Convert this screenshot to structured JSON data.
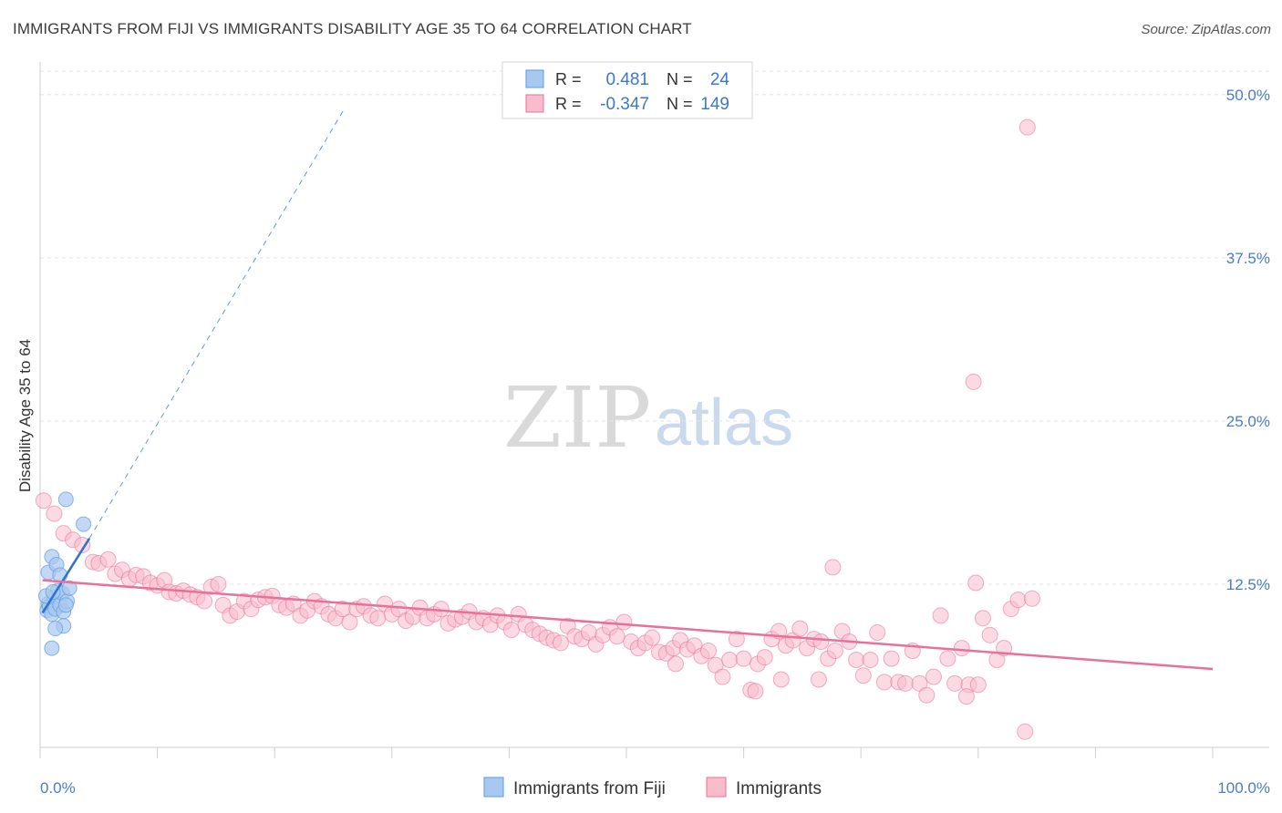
{
  "title": "IMMIGRANTS FROM FIJI VS IMMIGRANTS DISABILITY AGE 35 TO 64 CORRELATION CHART",
  "source": "Source: ZipAtlas.com",
  "watermark": {
    "zip": "ZIP",
    "atlas": "atlas"
  },
  "legend_box": {
    "rows": [
      {
        "r_label": "R =",
        "r_value": "0.481",
        "n_label": "N =",
        "n_value": "24",
        "color": "#a9c8f0"
      },
      {
        "r_label": "R =",
        "r_value": "-0.347",
        "n_label": "N =",
        "n_value": "149",
        "color": "#f8bccc"
      }
    ]
  },
  "bottom_legend": {
    "items": [
      {
        "label": "Immigrants from Fiji",
        "color": "#a9c8f0"
      },
      {
        "label": "Immigrants",
        "color": "#f8bccc"
      }
    ]
  },
  "chart_data": {
    "type": "scatter",
    "xlabel": "",
    "ylabel": "Disability Age 35 to 64",
    "xlim": [
      0,
      100
    ],
    "ylim": [
      0,
      52.5
    ],
    "x_tick_labels": [
      "0.0%",
      "100.0%"
    ],
    "y_ticks": [
      12.5,
      25.0,
      37.5,
      50.0
    ],
    "y_tick_labels": [
      "12.5%",
      "25.0%",
      "37.5%",
      "50.0%"
    ],
    "grid": true,
    "colors": {
      "fiji": "#5b9be0",
      "fiji_fill": "#a9c8f0",
      "immigrants": "#e8709a",
      "immigrants_fill": "#f8bccc"
    },
    "series": [
      {
        "name": "Immigrants from Fiji",
        "trend": {
          "x0": 0.2,
          "y0": 10.3,
          "x1": 4.2,
          "y1": 16.0,
          "dash_to_x": 26.0,
          "dash_to_y": 49.0
        },
        "points": [
          [
            0.6,
            10.5
          ],
          [
            0.7,
            11.0
          ],
          [
            0.8,
            10.8
          ],
          [
            1.0,
            10.2
          ],
          [
            1.2,
            11.5
          ],
          [
            1.3,
            10.6
          ],
          [
            1.5,
            12.0
          ],
          [
            1.7,
            10.9
          ],
          [
            1.9,
            11.8
          ],
          [
            2.0,
            10.4
          ],
          [
            2.3,
            11.2
          ],
          [
            2.5,
            12.2
          ],
          [
            0.7,
            13.4
          ],
          [
            1.0,
            14.6
          ],
          [
            1.4,
            14.0
          ],
          [
            1.7,
            13.2
          ],
          [
            2.2,
            10.9
          ],
          [
            2.0,
            9.3
          ],
          [
            1.3,
            9.1
          ],
          [
            1.0,
            7.6
          ],
          [
            3.7,
            17.1
          ],
          [
            2.2,
            19.0
          ],
          [
            0.5,
            11.6
          ],
          [
            1.1,
            11.9
          ]
        ]
      },
      {
        "name": "Immigrants",
        "trend": {
          "x0": 0.2,
          "y0": 12.8,
          "x1": 100.0,
          "y1": 6.0
        },
        "points": [
          [
            0.3,
            18.9
          ],
          [
            1.2,
            17.9
          ],
          [
            2.0,
            16.4
          ],
          [
            2.8,
            15.9
          ],
          [
            3.6,
            15.5
          ],
          [
            4.5,
            14.2
          ],
          [
            5.0,
            14.1
          ],
          [
            5.8,
            14.4
          ],
          [
            6.4,
            13.3
          ],
          [
            7.0,
            13.6
          ],
          [
            7.6,
            12.9
          ],
          [
            8.2,
            13.2
          ],
          [
            8.8,
            13.1
          ],
          [
            9.4,
            12.6
          ],
          [
            10.0,
            12.4
          ],
          [
            10.6,
            12.8
          ],
          [
            11.0,
            11.9
          ],
          [
            11.6,
            11.8
          ],
          [
            12.2,
            12.0
          ],
          [
            12.8,
            11.7
          ],
          [
            13.4,
            11.5
          ],
          [
            14.0,
            11.2
          ],
          [
            14.6,
            12.3
          ],
          [
            15.2,
            12.5
          ],
          [
            15.6,
            10.9
          ],
          [
            16.2,
            10.1
          ],
          [
            16.8,
            10.4
          ],
          [
            17.4,
            11.2
          ],
          [
            18.0,
            10.6
          ],
          [
            18.6,
            11.3
          ],
          [
            19.2,
            11.5
          ],
          [
            19.8,
            11.6
          ],
          [
            20.4,
            10.9
          ],
          [
            21.0,
            10.7
          ],
          [
            21.6,
            11.0
          ],
          [
            22.2,
            10.1
          ],
          [
            22.8,
            10.5
          ],
          [
            23.4,
            11.2
          ],
          [
            24.0,
            10.8
          ],
          [
            24.6,
            10.2
          ],
          [
            25.2,
            9.9
          ],
          [
            25.8,
            10.6
          ],
          [
            26.4,
            9.6
          ],
          [
            27.0,
            10.6
          ],
          [
            27.6,
            10.8
          ],
          [
            28.2,
            10.1
          ],
          [
            28.8,
            9.9
          ],
          [
            29.4,
            11.0
          ],
          [
            30.0,
            10.2
          ],
          [
            30.6,
            10.6
          ],
          [
            31.2,
            9.7
          ],
          [
            31.8,
            10.0
          ],
          [
            32.4,
            10.7
          ],
          [
            33.0,
            9.9
          ],
          [
            33.6,
            10.2
          ],
          [
            34.2,
            10.6
          ],
          [
            34.8,
            9.5
          ],
          [
            35.4,
            9.8
          ],
          [
            36.0,
            10.0
          ],
          [
            36.6,
            10.4
          ],
          [
            37.2,
            9.6
          ],
          [
            37.8,
            9.9
          ],
          [
            38.4,
            9.4
          ],
          [
            39.0,
            10.1
          ],
          [
            39.6,
            9.6
          ],
          [
            40.2,
            9.0
          ],
          [
            40.8,
            10.2
          ],
          [
            41.4,
            9.4
          ],
          [
            42.0,
            9.0
          ],
          [
            42.6,
            8.7
          ],
          [
            43.2,
            8.4
          ],
          [
            43.8,
            8.2
          ],
          [
            44.4,
            8.0
          ],
          [
            45.0,
            9.3
          ],
          [
            45.6,
            8.5
          ],
          [
            46.2,
            8.3
          ],
          [
            46.8,
            8.8
          ],
          [
            47.4,
            7.9
          ],
          [
            48.0,
            8.6
          ],
          [
            48.6,
            9.2
          ],
          [
            49.2,
            8.5
          ],
          [
            49.8,
            9.6
          ],
          [
            50.4,
            8.1
          ],
          [
            51.0,
            7.6
          ],
          [
            51.6,
            8.0
          ],
          [
            52.2,
            8.4
          ],
          [
            52.8,
            7.3
          ],
          [
            53.4,
            7.2
          ],
          [
            54.0,
            7.6
          ],
          [
            54.6,
            8.2
          ],
          [
            55.2,
            7.5
          ],
          [
            55.8,
            7.8
          ],
          [
            56.4,
            7.0
          ],
          [
            57.0,
            7.4
          ],
          [
            57.6,
            6.3
          ],
          [
            58.2,
            5.4
          ],
          [
            58.8,
            6.7
          ],
          [
            59.4,
            8.3
          ],
          [
            60.0,
            6.8
          ],
          [
            60.6,
            4.4
          ],
          [
            61.2,
            6.4
          ],
          [
            61.8,
            6.9
          ],
          [
            62.4,
            8.3
          ],
          [
            63.0,
            8.9
          ],
          [
            63.6,
            7.8
          ],
          [
            64.2,
            8.2
          ],
          [
            64.8,
            9.1
          ],
          [
            65.4,
            7.6
          ],
          [
            66.0,
            8.3
          ],
          [
            66.6,
            8.1
          ],
          [
            67.2,
            6.8
          ],
          [
            67.8,
            7.4
          ],
          [
            68.4,
            8.9
          ],
          [
            69.0,
            8.1
          ],
          [
            69.6,
            6.7
          ],
          [
            70.2,
            5.5
          ],
          [
            70.8,
            6.7
          ],
          [
            71.4,
            8.8
          ],
          [
            72.0,
            5.0
          ],
          [
            72.6,
            6.8
          ],
          [
            73.2,
            5.0
          ],
          [
            73.8,
            4.9
          ],
          [
            74.4,
            7.4
          ],
          [
            75.0,
            4.9
          ],
          [
            75.6,
            4.0
          ],
          [
            76.2,
            5.4
          ],
          [
            76.8,
            10.1
          ],
          [
            77.4,
            6.8
          ],
          [
            78.0,
            4.9
          ],
          [
            78.6,
            7.6
          ],
          [
            79.2,
            4.8
          ],
          [
            79.8,
            12.6
          ],
          [
            80.4,
            9.9
          ],
          [
            81.0,
            8.6
          ],
          [
            81.6,
            6.7
          ],
          [
            82.2,
            7.6
          ],
          [
            82.8,
            10.6
          ],
          [
            83.4,
            11.3
          ],
          [
            84.0,
            1.2
          ],
          [
            84.6,
            11.4
          ],
          [
            67.6,
            13.8
          ],
          [
            63.2,
            5.2
          ],
          [
            54.2,
            6.4
          ],
          [
            79.6,
            28.0
          ],
          [
            79.0,
            3.9
          ],
          [
            80.0,
            4.8
          ],
          [
            84.2,
            47.5
          ],
          [
            61.0,
            4.3
          ],
          [
            66.4,
            5.2
          ]
        ]
      }
    ]
  }
}
